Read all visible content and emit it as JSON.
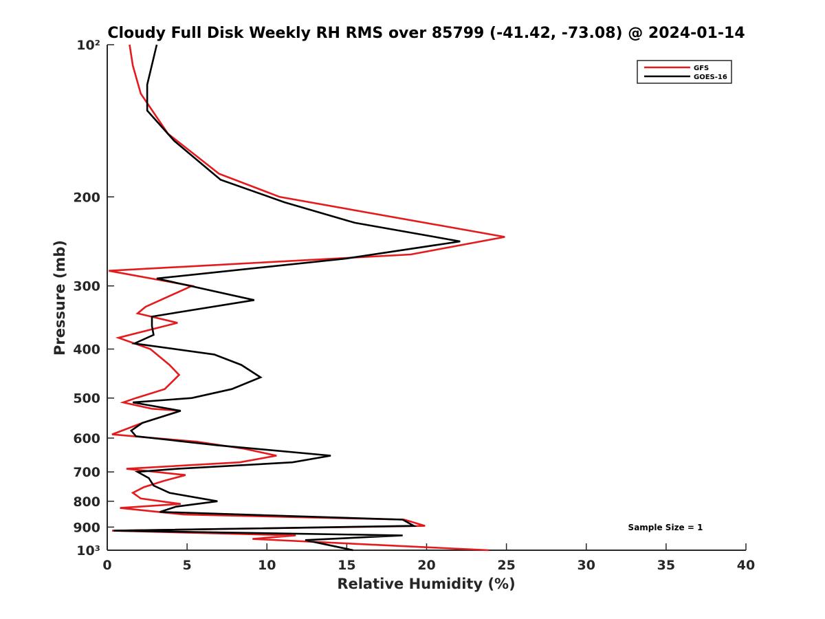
{
  "chart_data": {
    "type": "line",
    "title": "Cloudy Full Disk Weekly RH RMS over 85799 (-41.42, -73.08) @ 2024-01-14",
    "xlabel": "Relative Humidity (%)",
    "ylabel": "Pressure (mb)",
    "xlim": [
      0,
      40
    ],
    "ylim": [
      100,
      1000
    ],
    "y_scale": "log",
    "y_reversed": true,
    "x_ticks": [
      0,
      5,
      10,
      15,
      20,
      25,
      30,
      35,
      40
    ],
    "x_tick_labels": [
      "0",
      "5",
      "10",
      "15",
      "20",
      "25",
      "30",
      "35",
      "40"
    ],
    "y_ticks": [
      100,
      200,
      300,
      400,
      500,
      600,
      700,
      800,
      900,
      1000
    ],
    "y_tick_labels": [
      "10²",
      "200",
      "300",
      "400",
      "500",
      "600",
      "700",
      "800",
      "900",
      "10³"
    ],
    "legend_position": "top-right",
    "grid": false,
    "annotation": "Sample Size = 1",
    "series": [
      {
        "name": "GFS",
        "color": "#e41a1c",
        "points": [
          [
            1.4,
            100
          ],
          [
            1.6,
            110
          ],
          [
            2.1,
            125
          ],
          [
            3.8,
            150
          ],
          [
            7.0,
            180
          ],
          [
            10.8,
            200
          ],
          [
            24.9,
            240
          ],
          [
            19.0,
            260
          ],
          [
            0.1,
            280
          ],
          [
            5.3,
            300
          ],
          [
            2.4,
            330
          ],
          [
            1.9,
            340
          ],
          [
            4.4,
            355
          ],
          [
            0.7,
            380
          ],
          [
            2.7,
            400
          ],
          [
            3.9,
            430
          ],
          [
            4.5,
            450
          ],
          [
            3.6,
            480
          ],
          [
            1.8,
            500
          ],
          [
            1.0,
            510
          ],
          [
            2.8,
            525
          ],
          [
            4.6,
            530
          ],
          [
            2.2,
            560
          ],
          [
            0.3,
            590
          ],
          [
            5.6,
            610
          ],
          [
            8.6,
            630
          ],
          [
            10.6,
            650
          ],
          [
            8.3,
            670
          ],
          [
            1.2,
            690
          ],
          [
            4.9,
            710
          ],
          [
            3.5,
            730
          ],
          [
            2.3,
            750
          ],
          [
            1.6,
            770
          ],
          [
            2.1,
            790
          ],
          [
            4.6,
            810
          ],
          [
            0.8,
            825
          ],
          [
            4.8,
            850
          ],
          [
            18.6,
            870
          ],
          [
            19.9,
            895
          ],
          [
            0.3,
            915
          ],
          [
            11.8,
            935
          ],
          [
            9.1,
            950
          ],
          [
            23.9,
            1000
          ]
        ]
      },
      {
        "name": "GOES-16",
        "color": "#000000",
        "points": [
          [
            3.1,
            100
          ],
          [
            2.5,
            120
          ],
          [
            2.5,
            135
          ],
          [
            4.2,
            155
          ],
          [
            7.1,
            185
          ],
          [
            11.1,
            205
          ],
          [
            15.5,
            225
          ],
          [
            22.1,
            245
          ],
          [
            14.9,
            265
          ],
          [
            3.1,
            290
          ],
          [
            9.2,
            320
          ],
          [
            2.8,
            345
          ],
          [
            2.8,
            360
          ],
          [
            2.9,
            375
          ],
          [
            1.7,
            390
          ],
          [
            6.7,
            410
          ],
          [
            8.4,
            430
          ],
          [
            9.6,
            455
          ],
          [
            7.8,
            480
          ],
          [
            5.3,
            500
          ],
          [
            1.6,
            510
          ],
          [
            4.6,
            530
          ],
          [
            2.2,
            560
          ],
          [
            1.5,
            580
          ],
          [
            1.8,
            595
          ],
          [
            6.9,
            620
          ],
          [
            14.0,
            650
          ],
          [
            11.6,
            670
          ],
          [
            4.4,
            690
          ],
          [
            1.9,
            700
          ],
          [
            2.6,
            720
          ],
          [
            2.9,
            745
          ],
          [
            3.9,
            770
          ],
          [
            6.9,
            800
          ],
          [
            4.3,
            820
          ],
          [
            3.3,
            840
          ],
          [
            18.5,
            870
          ],
          [
            19.2,
            895
          ],
          [
            0.4,
            915
          ],
          [
            18.5,
            935
          ],
          [
            12.4,
            955
          ],
          [
            15.4,
            1000
          ]
        ]
      }
    ]
  }
}
